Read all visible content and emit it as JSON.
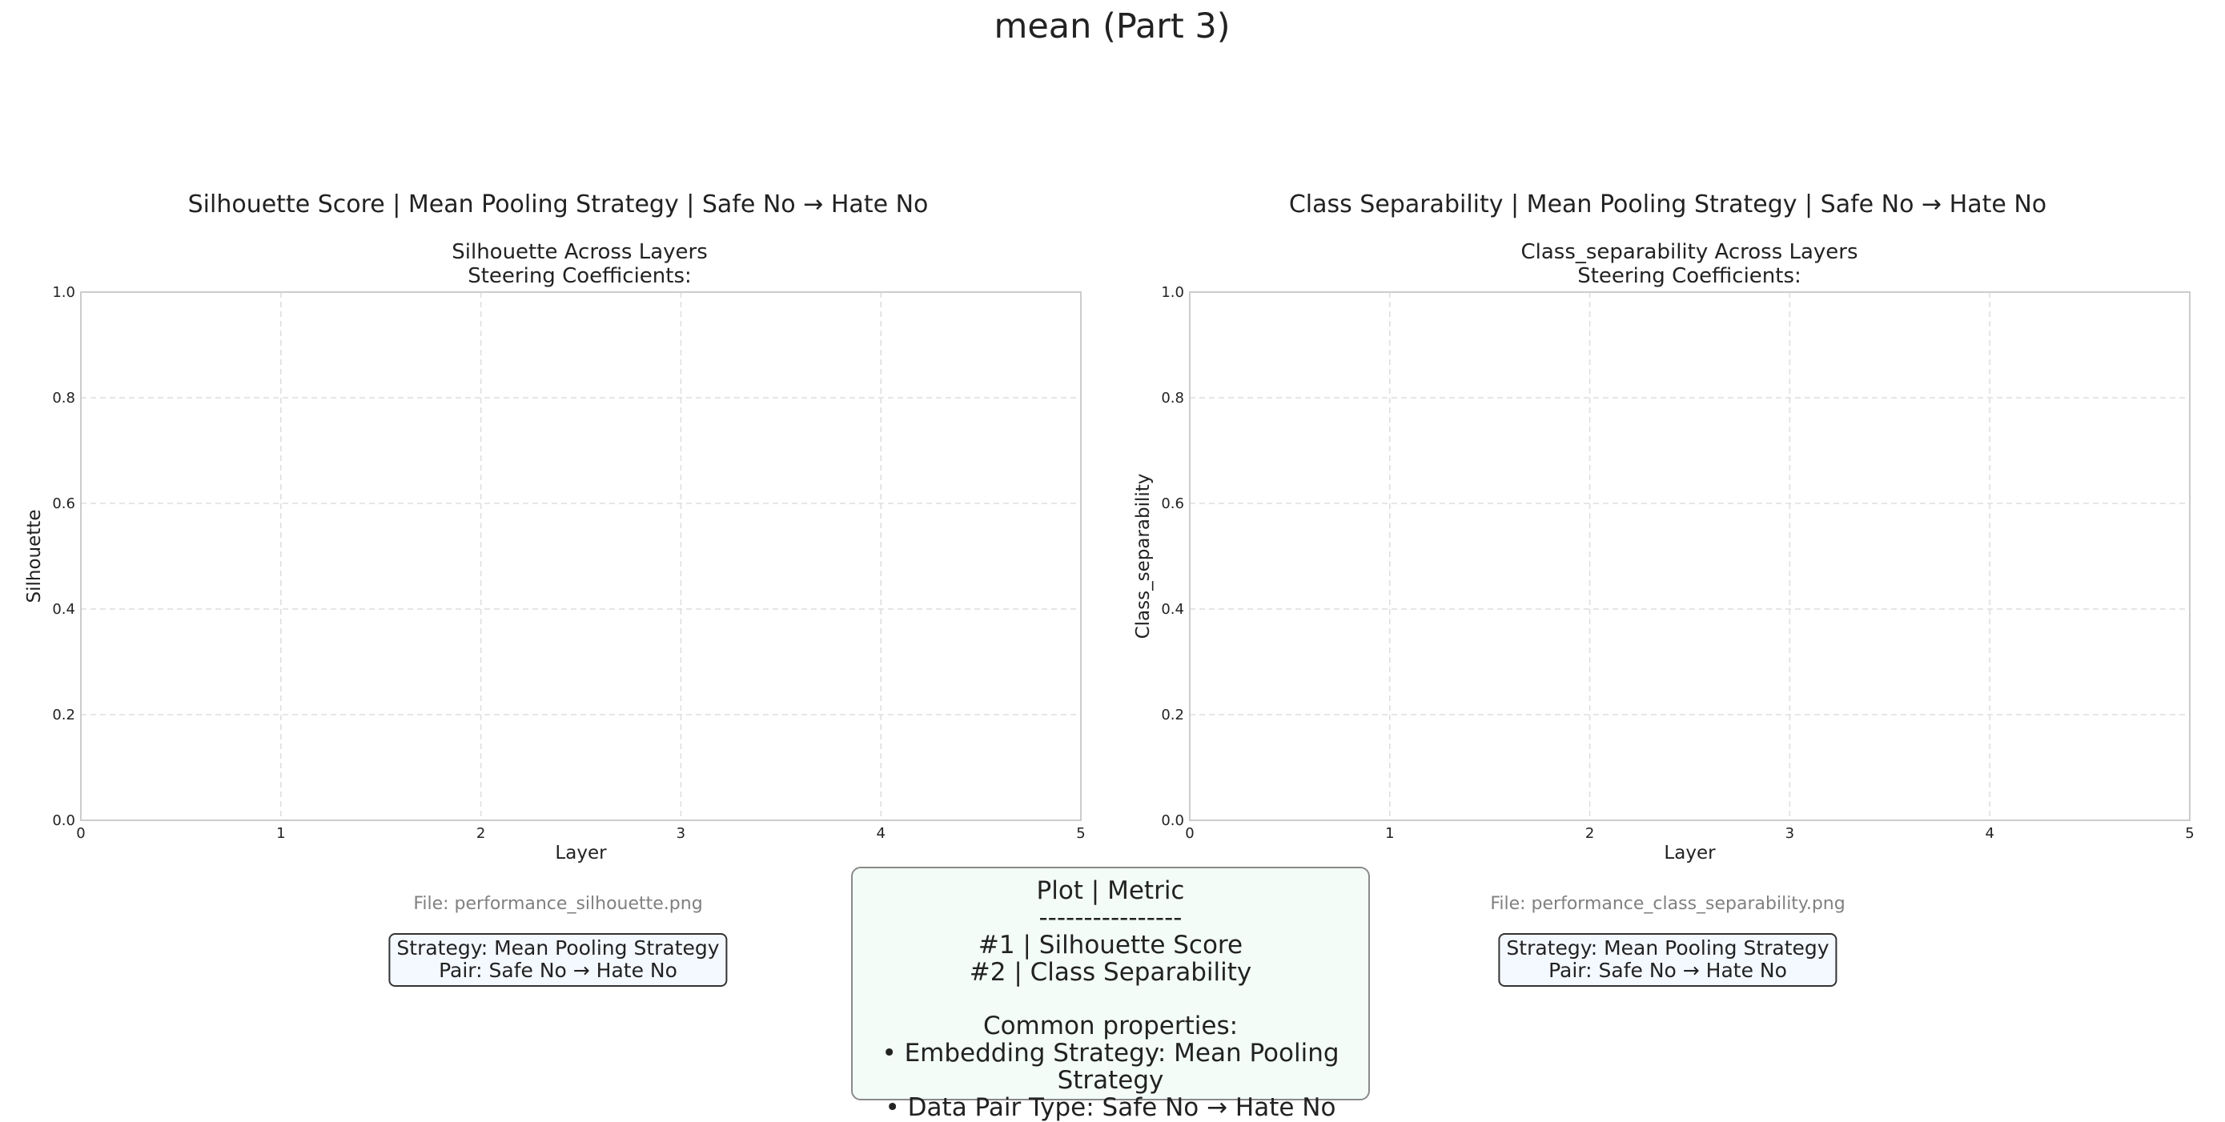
{
  "suptitle": "mean (Part 3)",
  "chart_data": [
    {
      "type": "line",
      "panel_title": "Silhouette Score | Mean Pooling Strategy | Safe No → Hate No",
      "title": "Silhouette Across Layers",
      "subtitle": "Steering Coefficients:",
      "xlabel": "Layer",
      "ylabel": "Silhouette",
      "xlim": [
        0,
        5
      ],
      "ylim": [
        0,
        1
      ],
      "xticks": [
        "0",
        "1",
        "2",
        "3",
        "4",
        "5"
      ],
      "yticks": [
        "0.0",
        "0.2",
        "0.4",
        "0.6",
        "0.8",
        "1.0"
      ],
      "grid": true,
      "series": [],
      "file": "File: performance_silhouette.png",
      "info": [
        "Strategy: Mean Pooling Strategy",
        "Pair: Safe No → Hate No"
      ]
    },
    {
      "type": "line",
      "panel_title": "Class Separability | Mean Pooling Strategy | Safe No → Hate No",
      "title": "Class_separability Across Layers",
      "subtitle": "Steering Coefficients:",
      "xlabel": "Layer",
      "ylabel": "Class_separability",
      "xlim": [
        0,
        5
      ],
      "ylim": [
        0,
        1
      ],
      "xticks": [
        "0",
        "1",
        "2",
        "3",
        "4",
        "5"
      ],
      "yticks": [
        "0.0",
        "0.2",
        "0.4",
        "0.6",
        "0.8",
        "1.0"
      ],
      "grid": true,
      "series": [],
      "file": "File: performance_class_separability.png",
      "info": [
        "Strategy: Mean Pooling Strategy",
        "Pair: Safe No → Hate No"
      ]
    }
  ],
  "legend_box": {
    "header": "Plot | Metric",
    "divider": "----------------",
    "rows": [
      "#1 | Silhouette Score",
      "#2 | Class Separability"
    ],
    "common_header": "Common properties:",
    "common": [
      "• Embedding Strategy: Mean Pooling Strategy",
      "• Data Pair Type: Safe No → Hate No"
    ]
  },
  "colors": {
    "grid": "#dddddd",
    "axes": "#cccccc",
    "info_box_bg": "#f4f8ff",
    "legend_box_bg": "#f3fcf7"
  }
}
